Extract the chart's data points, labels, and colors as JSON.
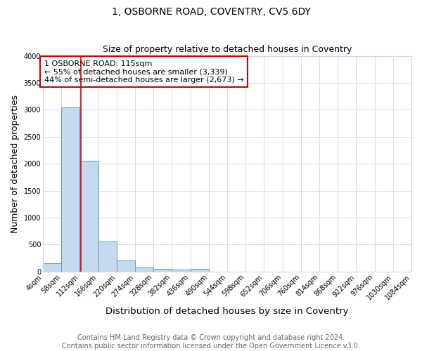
{
  "title": "1, OSBORNE ROAD, COVENTRY, CV5 6DY",
  "subtitle": "Size of property relative to detached houses in Coventry",
  "xlabel": "Distribution of detached houses by size in Coventry",
  "ylabel": "Number of detached properties",
  "footer_line1": "Contains HM Land Registry data © Crown copyright and database right 2024.",
  "footer_line2": "Contains public sector information licensed under the Open Government Licence v3.0.",
  "bin_edges": [
    4,
    58,
    112,
    166,
    220,
    274,
    328,
    382,
    436,
    490,
    544,
    598,
    652,
    706,
    760,
    814,
    868,
    922,
    976,
    1030,
    1084
  ],
  "bar_heights": [
    150,
    3050,
    2060,
    560,
    210,
    75,
    55,
    35,
    55,
    0,
    0,
    0,
    0,
    0,
    0,
    0,
    0,
    0,
    0,
    0
  ],
  "bar_color": "#c5d8ed",
  "bar_edge_color": "#5b9bd5",
  "property_size": 115,
  "vline_color": "#cc0000",
  "annotation_line1": "1 OSBORNE ROAD: 115sqm",
  "annotation_line2": "← 55% of detached houses are smaller (3,339)",
  "annotation_line3": "44% of semi-detached houses are larger (2,673) →",
  "annotation_box_color": "#cc0000",
  "ylim": [
    0,
    4000
  ],
  "yticks": [
    0,
    500,
    1000,
    1500,
    2000,
    2500,
    3000,
    3500,
    4000
  ],
  "background_color": "#ffffff",
  "grid_color": "#c8d8e8",
  "title_fontsize": 10,
  "subtitle_fontsize": 9,
  "axis_label_fontsize": 9,
  "tick_fontsize": 7,
  "footer_fontsize": 7,
  "annot_fontsize": 8
}
